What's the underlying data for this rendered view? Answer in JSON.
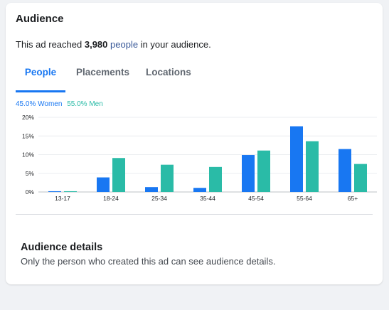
{
  "audience": {
    "title": "Audience",
    "reach_prefix": "This ad reached",
    "reach_count": "3,980",
    "reach_link": "people",
    "reach_suffix": "in your audience."
  },
  "tabs": [
    {
      "label": "People",
      "active": true
    },
    {
      "label": "Placements",
      "active": false
    },
    {
      "label": "Locations",
      "active": false
    }
  ],
  "legend": {
    "women": "45.0% Women",
    "men": "55.0% Men"
  },
  "colors": {
    "women": "#1877f2",
    "men": "#2abba7",
    "accent": "#1877f2"
  },
  "chart_data": {
    "type": "bar",
    "categories": [
      "13-17",
      "18-24",
      "25-34",
      "35-44",
      "45-54",
      "55-64",
      "65+"
    ],
    "series": [
      {
        "name": "Women",
        "values": [
          0.2,
          3.9,
          1.3,
          1.1,
          9.9,
          17.6,
          11.5
        ]
      },
      {
        "name": "Men",
        "values": [
          0.2,
          9.1,
          7.3,
          6.7,
          11.1,
          13.6,
          7.5
        ]
      }
    ],
    "yticks": [
      "0%",
      "5%",
      "10%",
      "15%",
      "20%"
    ],
    "ylim": [
      0,
      20
    ],
    "grid": true,
    "title": "",
    "xlabel": "",
    "ylabel": ""
  },
  "details": {
    "title": "Audience details",
    "text": "Only the person who created this ad can see audience details."
  }
}
